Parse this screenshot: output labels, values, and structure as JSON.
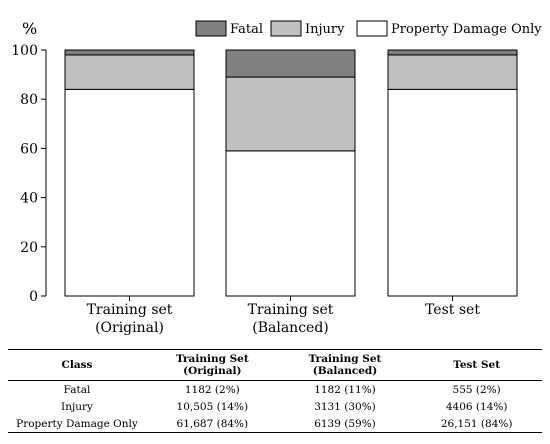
{
  "chart_data": {
    "type": "bar",
    "stacked": true,
    "y_unit_label": "%",
    "ylim": [
      0,
      100
    ],
    "yticks": [
      0,
      20,
      40,
      60,
      80,
      100
    ],
    "categories": [
      [
        "Training set",
        "(Original)"
      ],
      [
        "Training set",
        "(Balanced)"
      ],
      [
        "Test set"
      ]
    ],
    "series": [
      {
        "name": "Property Damage Only",
        "color": "#ffffff",
        "values": [
          84,
          59,
          84
        ]
      },
      {
        "name": "Injury",
        "color": "#c0c0c0",
        "values": [
          14,
          30,
          14
        ]
      },
      {
        "name": "Fatal",
        "color": "#808080",
        "values": [
          2,
          11,
          2
        ]
      }
    ],
    "legend_order": [
      "Fatal",
      "Injury",
      "Property Damage Only"
    ],
    "legend_position": "top-right",
    "grid": false
  },
  "table": {
    "headers": [
      [
        "Class"
      ],
      [
        "Training Set",
        "(Original)"
      ],
      [
        "Training Set",
        "(Balanced)"
      ],
      [
        "Test Set"
      ]
    ],
    "rows": [
      [
        "Fatal",
        "1182 (2%)",
        "1182 (11%)",
        "555 (2%)"
      ],
      [
        "Injury",
        "10,505 (14%)",
        "3131 (30%)",
        "4406 (14%)"
      ],
      [
        "Property Damage Only",
        "61,687 (84%)",
        "6139 (59%)",
        "26,151 (84%)"
      ]
    ]
  }
}
